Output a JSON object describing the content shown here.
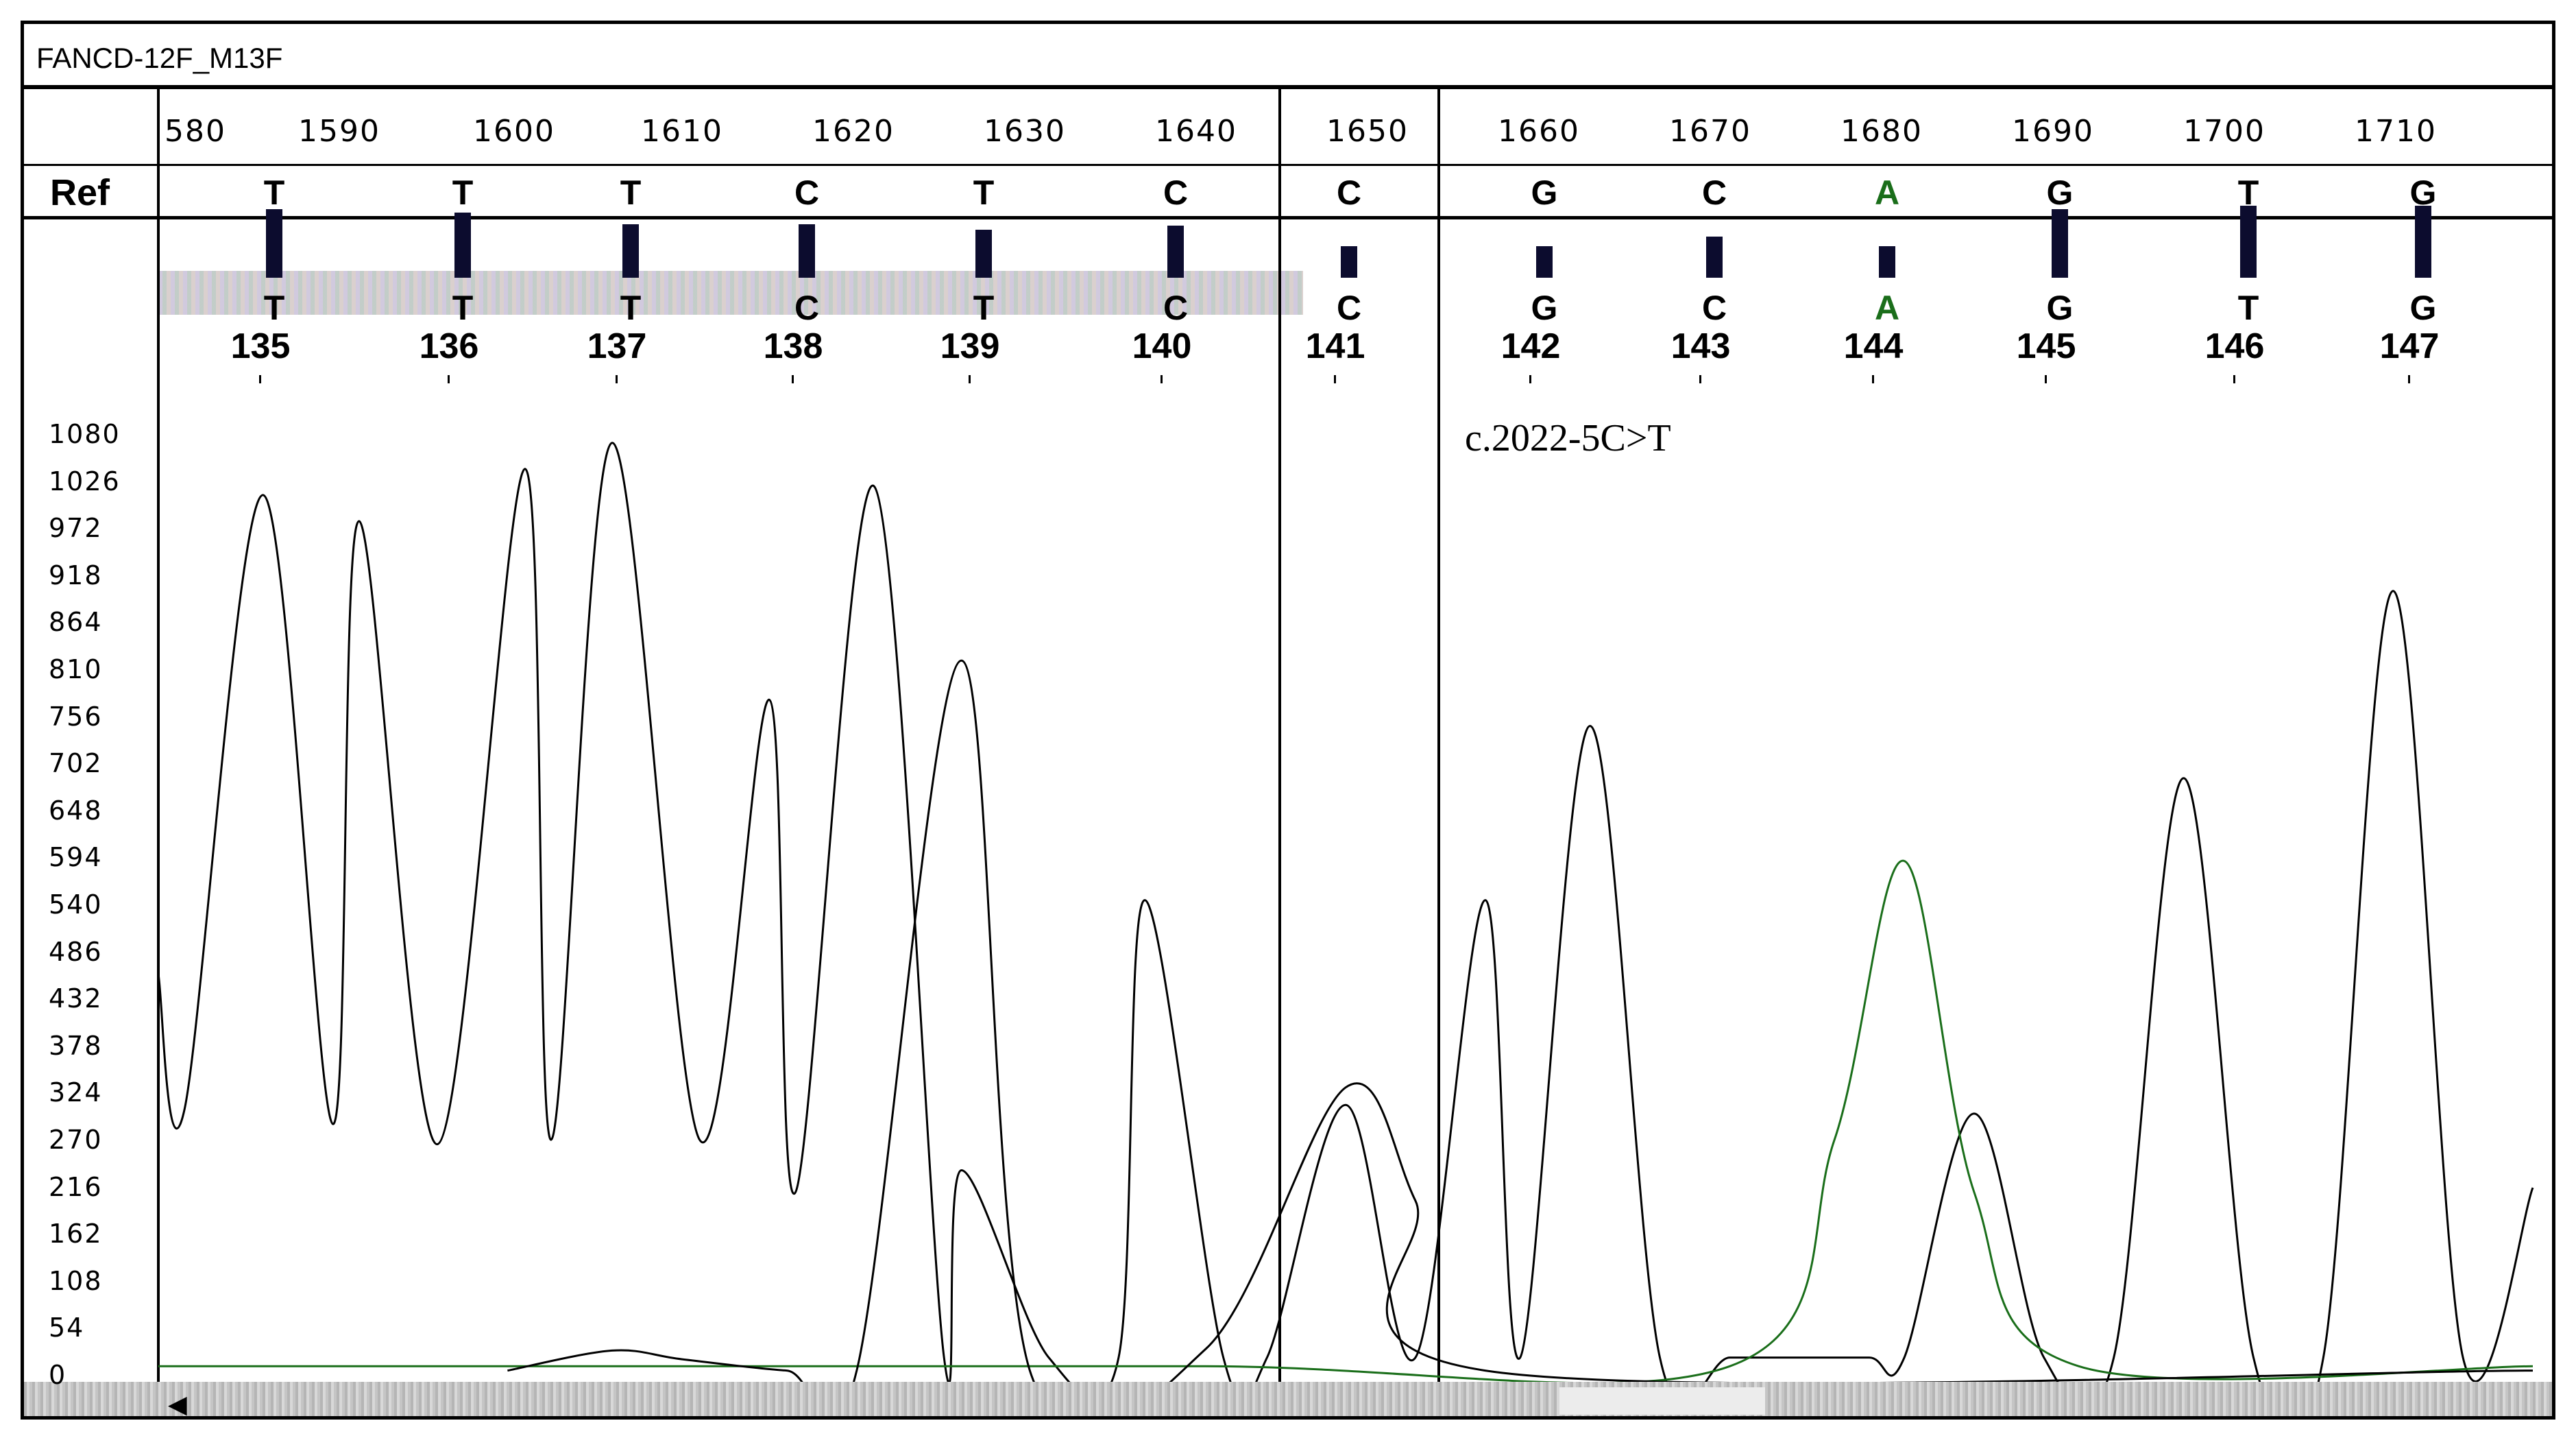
{
  "window": {
    "title": "FANCD-12F_M13F"
  },
  "ruler": {
    "ticks": [
      "580",
      "1590",
      "1600",
      "1610",
      "1620",
      "1630",
      "1640",
      "1650",
      "1660",
      "1670",
      "1680",
      "1690",
      "1700",
      "1710"
    ]
  },
  "ref_row": {
    "label": "Ref",
    "bases": [
      "T",
      "T",
      "T",
      "C",
      "T",
      "C",
      "C",
      "G",
      "C",
      "A",
      "G",
      "T",
      "G"
    ]
  },
  "base_calls": {
    "bases": [
      "T",
      "T",
      "T",
      "C",
      "T",
      "C",
      "C",
      "G",
      "C",
      "A",
      "G",
      "T",
      "G"
    ],
    "positions": [
      "135",
      "136",
      "137",
      "138",
      "139",
      "140",
      "141",
      "142",
      "143",
      "144",
      "145",
      "146",
      "147"
    ],
    "quality_bar_heights_relative": [
      1.0,
      0.95,
      0.78,
      0.78,
      0.7,
      0.76,
      0.46,
      0.46,
      0.6,
      0.46,
      1.0,
      1.05,
      1.05
    ]
  },
  "y_axis": {
    "labels": [
      "1080",
      "1026",
      "972",
      "918",
      "864",
      "810",
      "756",
      "702",
      "648",
      "594",
      "540",
      "486",
      "432",
      "378",
      "324",
      "270",
      "216",
      "162",
      "108",
      "54",
      "0"
    ]
  },
  "annotation": {
    "text": "c.2022-5C>T"
  },
  "colors": {
    "adenine": "#1a6e1a",
    "trace": "#000000",
    "background": "#ffffff"
  },
  "chart_data": {
    "type": "line",
    "title": "FANCD-12F_M13F",
    "xlabel": "",
    "ylabel": "",
    "xlim": [
      1580,
      1716
    ],
    "ylim": [
      0,
      1080
    ],
    "series": [
      {
        "name": "",
        "color": "#000000",
        "x": [
          1580,
          1581.5,
          1586,
          1590,
          1591.5,
          1596,
          1601,
          1602.5,
          1606,
          1611,
          1615,
          1616.5,
          1621,
          1625,
          1626,
          1631,
          1635,
          1636.5,
          1641,
          1643.5,
          1648,
          1652,
          1656,
          1658,
          1662,
          1666,
          1670,
          1674,
          1678,
          1680,
          1684,
          1688,
          1692,
          1696,
          1700,
          1704,
          1708,
          1712,
          1716
        ],
        "y": [
          460,
          305,
          1010,
          288,
          980,
          265,
          1040,
          270,
          1070,
          270,
          775,
          210,
          1020,
          20,
          235,
          20,
          20,
          545,
          20,
          20,
          310,
          20,
          545,
          20,
          745,
          20,
          20,
          20,
          20,
          20,
          300,
          20,
          20,
          685,
          20,
          20,
          900,
          20,
          215
        ]
      },
      {
        "name": "",
        "color": "#1a6e1a",
        "x": [
          1580,
          1590,
          1600,
          1640,
          1670,
          1676,
          1680,
          1684,
          1690,
          1716
        ],
        "y": [
          10,
          10,
          10,
          10,
          10,
          270,
          590,
          210,
          10,
          10
        ]
      },
      {
        "name": "",
        "color": "#000000",
        "x": [
          1600,
          1606,
          1610,
          1616,
          1620,
          1626,
          1630,
          1640,
          1648,
          1652,
          1656,
          1716
        ],
        "y": [
          5,
          28,
          18,
          5,
          5,
          820,
          0,
          30,
          330,
          200,
          5,
          5
        ]
      }
    ]
  }
}
